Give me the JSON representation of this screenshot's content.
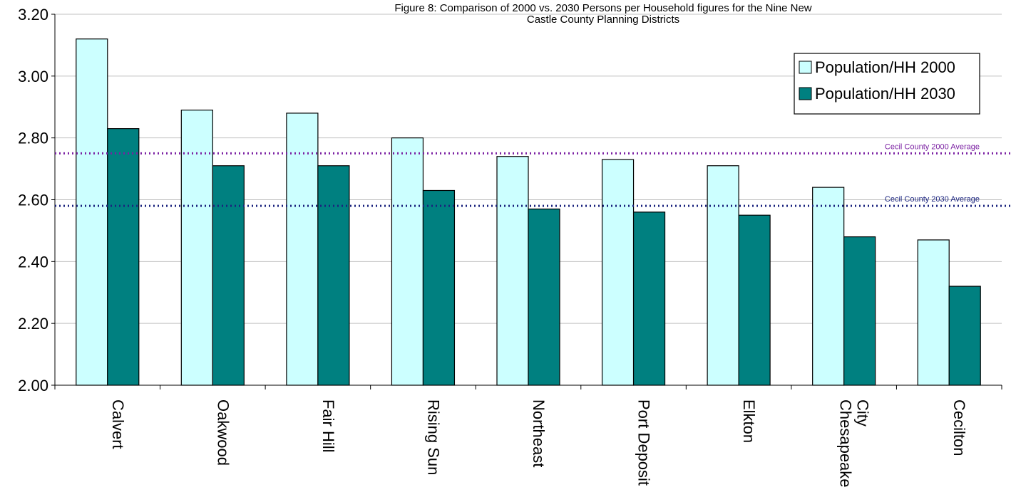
{
  "chart_data": {
    "type": "bar",
    "title_lines": [
      "Figure 8: Comparison of 2000 vs. 2030 Persons per Household figures for the Nine New",
      "Castle County Planning Districts"
    ],
    "categories": [
      "Calvert",
      "Oakwood",
      "Fair Hill",
      "Rising Sun",
      "Northeast",
      "Port Deposit",
      "Elkton",
      "Chesapeake City",
      "Cecilton"
    ],
    "category_label_lines": [
      [
        "Calvert"
      ],
      [
        "Oakwood"
      ],
      [
        "Fair Hill"
      ],
      [
        "Rising Sun"
      ],
      [
        "Northeast"
      ],
      [
        "Port Deposit"
      ],
      [
        "Elkton"
      ],
      [
        "Chesapeake",
        "City"
      ],
      [
        "Cecilton"
      ]
    ],
    "series": [
      {
        "name": "Population/HH 2000",
        "color": "#ccffff",
        "values": [
          3.12,
          2.89,
          2.88,
          2.8,
          2.74,
          2.73,
          2.71,
          2.64,
          2.47
        ]
      },
      {
        "name": "Population/HH 2030",
        "color": "#008080",
        "values": [
          2.83,
          2.71,
          2.71,
          2.63,
          2.57,
          2.56,
          2.55,
          2.48,
          2.32
        ]
      }
    ],
    "reference_lines": [
      {
        "label": "Cecil County 2000 Average",
        "value": 2.75,
        "color": "#7a1fa2"
      },
      {
        "label": "Cecil County 2030 Average",
        "value": 2.58,
        "color": "#1a237e"
      }
    ],
    "ylim": [
      2.0,
      3.2
    ],
    "yticks": [
      "2.00",
      "2.20",
      "2.40",
      "2.60",
      "2.80",
      "3.00",
      "3.20"
    ],
    "grid": true,
    "legend_position": "top-right"
  }
}
